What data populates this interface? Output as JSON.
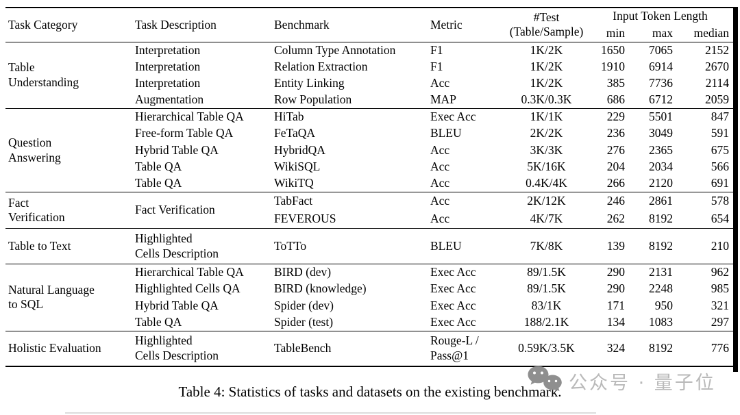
{
  "header": {
    "task_category": "Task Category",
    "task_description": "Task Description",
    "benchmark": "Benchmark",
    "metric": "Metric",
    "test_line1": "#Test",
    "test_line2": "(Table/Sample)",
    "input_token_length": "Input Token Length",
    "min": "min",
    "max": "max",
    "median": "median"
  },
  "sections": [
    {
      "category": "Table\nUnderstanding",
      "rows": [
        {
          "description": "Interpretation",
          "benchmark": "Column Type Annotation",
          "metric": "F1",
          "test": "1K/2K",
          "min": "1650",
          "max": "7065",
          "median": "2152"
        },
        {
          "description": "Interpretation",
          "benchmark": "Relation Extraction",
          "metric": "F1",
          "test": "1K/2K",
          "min": "1910",
          "max": "6914",
          "median": "2670"
        },
        {
          "description": "Interpretation",
          "benchmark": "Entity Linking",
          "metric": "Acc",
          "test": "1K/2K",
          "min": "385",
          "max": "7736",
          "median": "2114"
        },
        {
          "description": "Augmentation",
          "benchmark": "Row Population",
          "metric": "MAP",
          "test": "0.3K/0.3K",
          "min": "686",
          "max": "6712",
          "median": "2059"
        }
      ]
    },
    {
      "category": "Question\nAnswering",
      "rows": [
        {
          "description": "Hierarchical Table QA",
          "benchmark": "HiTab",
          "metric": "Exec Acc",
          "test": "1K/1K",
          "min": "229",
          "max": "5501",
          "median": "847"
        },
        {
          "description": "Free-form Table QA",
          "benchmark": "FeTaQA",
          "metric": "BLEU",
          "test": "2K/2K",
          "min": "236",
          "max": "3049",
          "median": "591"
        },
        {
          "description": "Hybrid Table QA",
          "benchmark": "HybridQA",
          "metric": "Acc",
          "test": "3K/3K",
          "min": "276",
          "max": "2365",
          "median": "675"
        },
        {
          "description": "Table QA",
          "benchmark": "WikiSQL",
          "metric": "Acc",
          "test": "5K/16K",
          "min": "204",
          "max": "2034",
          "median": "566"
        },
        {
          "description": "Table QA",
          "benchmark": "WikiTQ",
          "metric": "Acc",
          "test": "0.4K/4K",
          "min": "266",
          "max": "2120",
          "median": "691"
        }
      ]
    },
    {
      "category": "Fact\nVerification",
      "shared_description": "Fact Verification",
      "roomy": true,
      "rows": [
        {
          "benchmark": "TabFact",
          "metric": "Acc",
          "test": "2K/12K",
          "min": "246",
          "max": "2861",
          "median": "578"
        },
        {
          "benchmark": "FEVEROUS",
          "metric": "Acc",
          "test": "4K/7K",
          "min": "262",
          "max": "8192",
          "median": "654"
        }
      ]
    },
    {
      "category": "Table to Text",
      "tall": true,
      "rows": [
        {
          "description": "Highlighted\nCells Description",
          "benchmark": "ToTTo",
          "metric": "BLEU",
          "test": "7K/8K",
          "min": "139",
          "max": "8192",
          "median": "210"
        }
      ]
    },
    {
      "category": "Natural Language\nto SQL",
      "rows": [
        {
          "description": "Hierarchical Table QA",
          "benchmark": "BIRD (dev)",
          "metric": "Exec Acc",
          "test": "89/1.5K",
          "min": "290",
          "max": "2131",
          "median": "962"
        },
        {
          "description": "Highlighted Cells QA",
          "benchmark": "BIRD (knowledge)",
          "metric": "Exec Acc",
          "test": "89/1.5K",
          "min": "290",
          "max": "2248",
          "median": "985"
        },
        {
          "description": "Hybrid Table QA",
          "benchmark": "Spider (dev)",
          "metric": "Exec Acc",
          "test": "83/1K",
          "min": "171",
          "max": "950",
          "median": "321"
        },
        {
          "description": "Table QA",
          "benchmark": "Spider (test)",
          "metric": "Exec Acc",
          "test": "188/2.1K",
          "min": "134",
          "max": "1083",
          "median": "297"
        }
      ]
    },
    {
      "category": "Holistic Evaluation",
      "tall": true,
      "rows": [
        {
          "description": "Highlighted\nCells Description",
          "benchmark": "TableBench",
          "metric": "Rouge-L /\nPass@1",
          "test": "0.59K/3.5K",
          "min": "324",
          "max": "8192",
          "median": "776"
        }
      ]
    }
  ],
  "caption": "Table 4: Statistics of tasks and datasets on the existing benchmark.",
  "watermark": {
    "icon": "wechat-icon",
    "text": "公众号 · 量子位",
    "icon_color": "#8f8f8f",
    "text_color": "#b9b9b9"
  }
}
